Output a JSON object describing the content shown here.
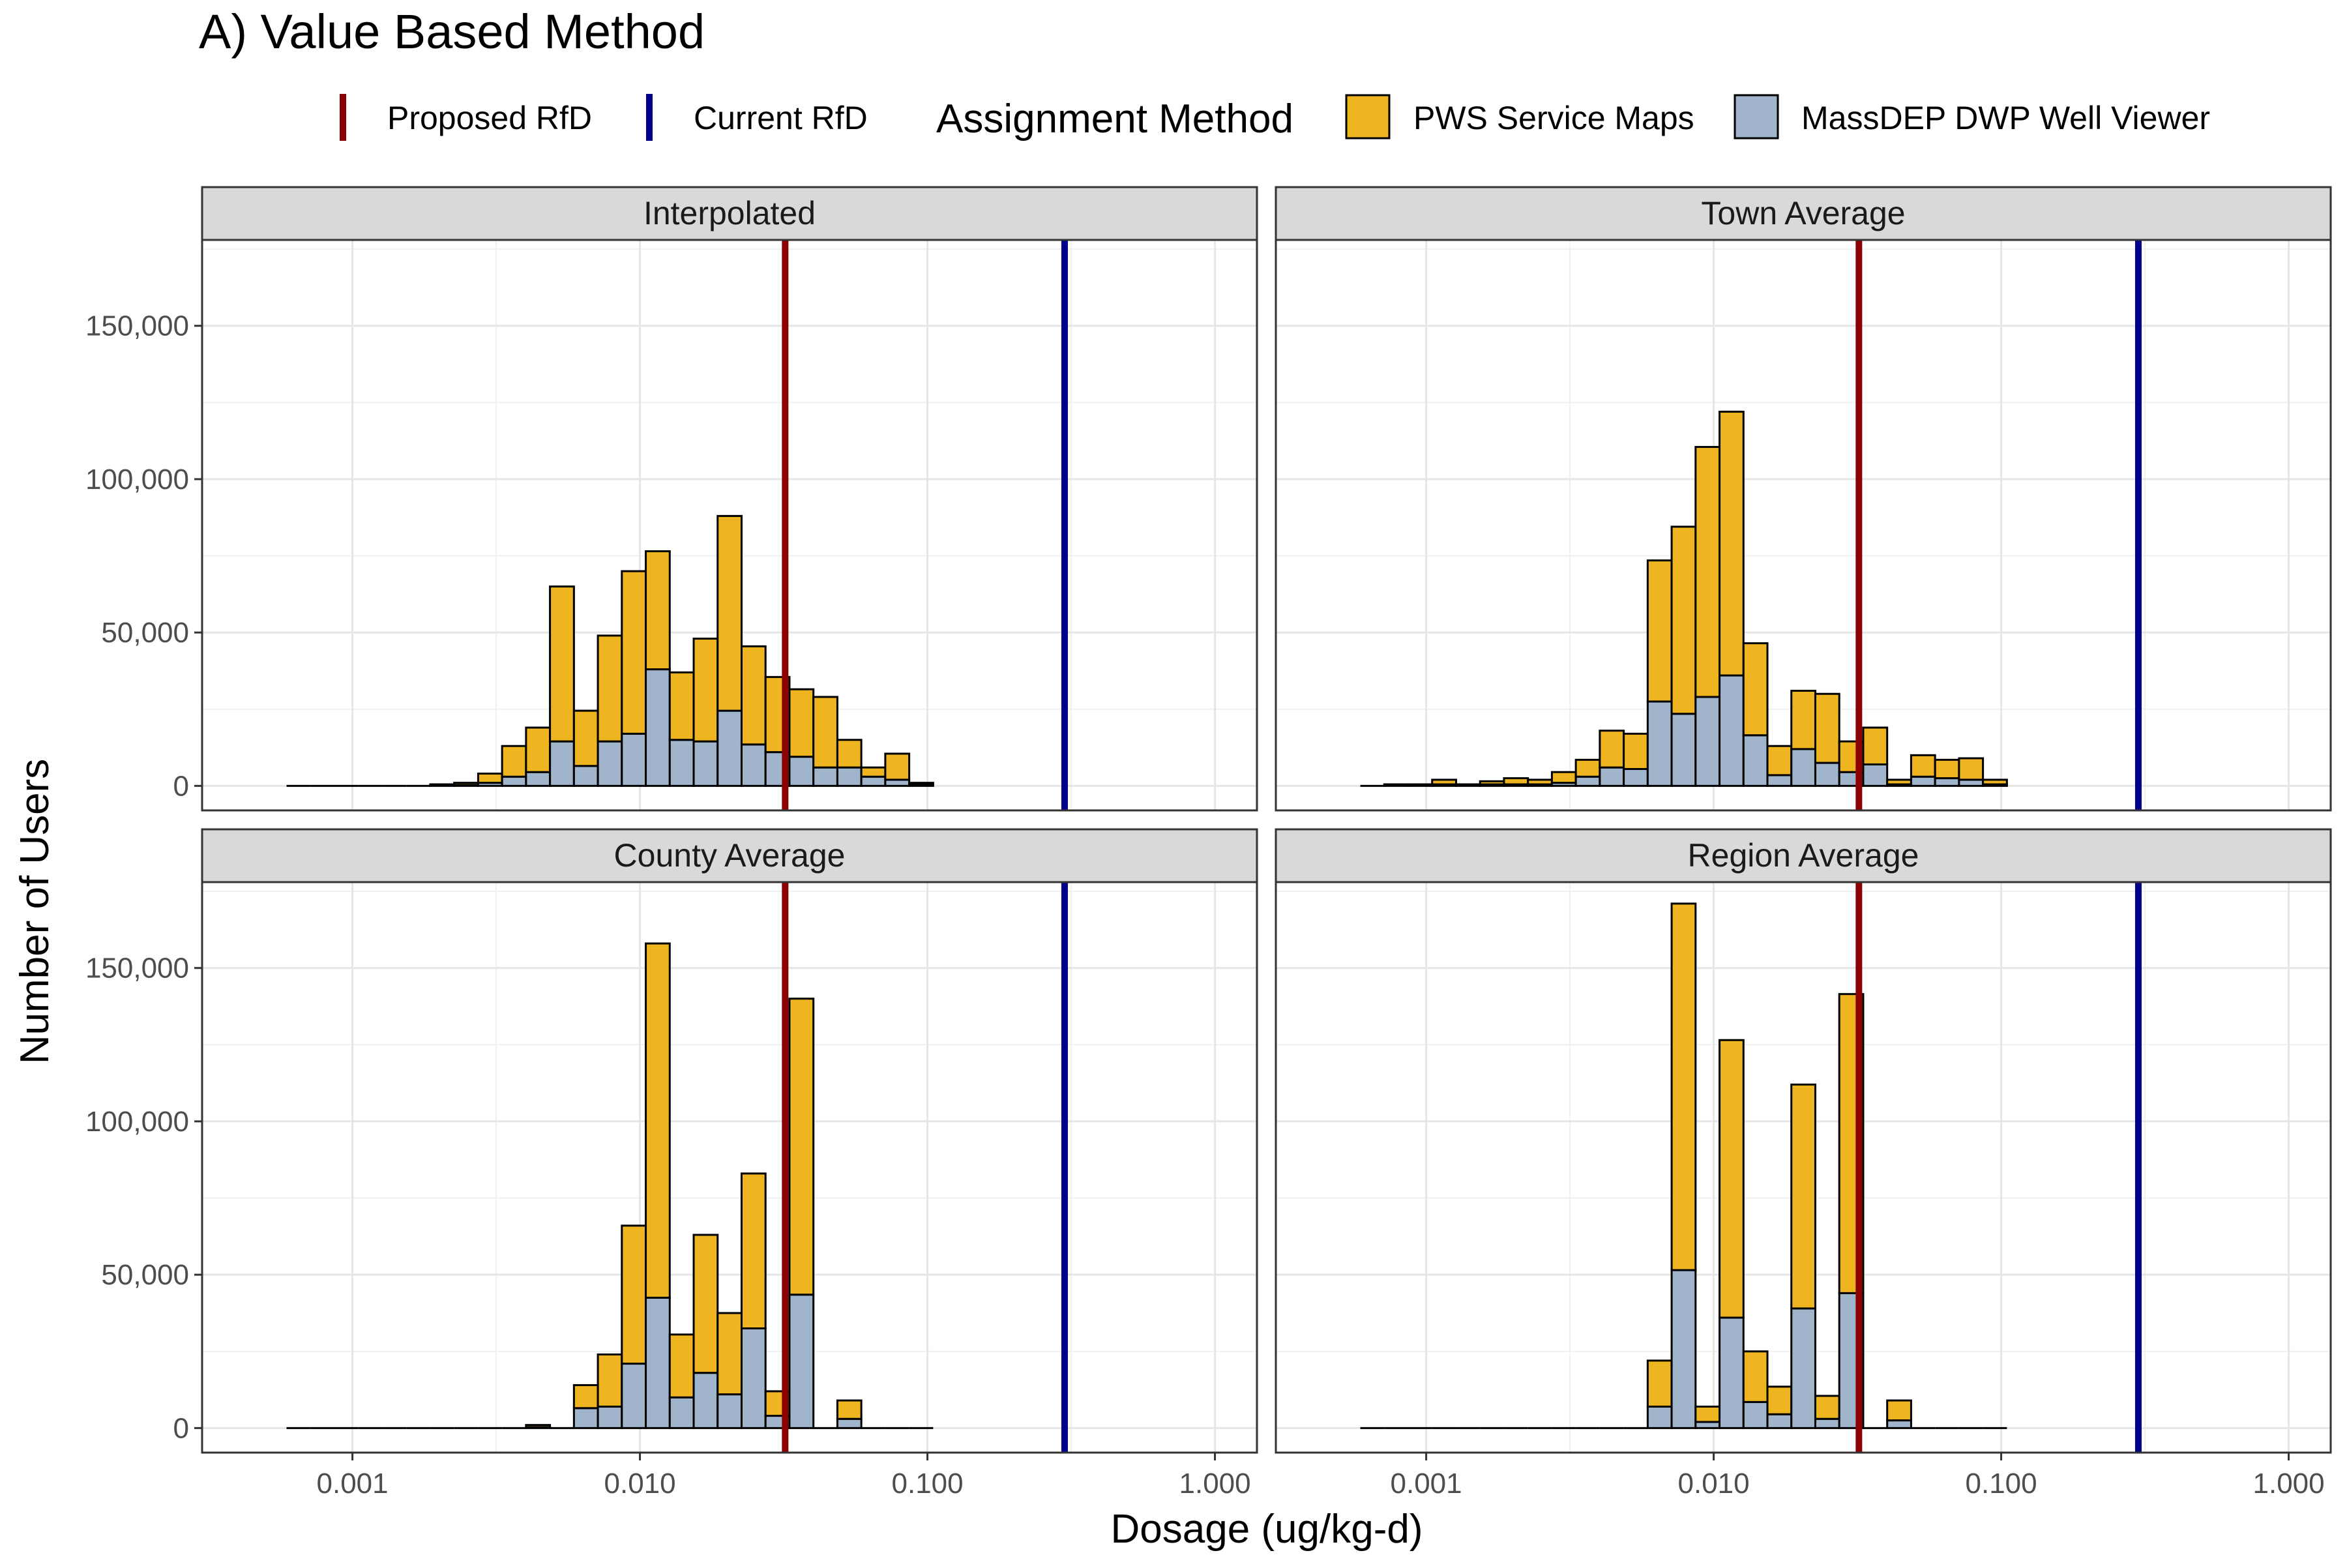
{
  "title": "A) Value Based Method",
  "legend": {
    "lines": [
      {
        "label": "Proposed RfD",
        "color": "#8b0000"
      },
      {
        "label": "Current RfD",
        "color": "#00008b"
      }
    ],
    "fill_title": "Assignment Method",
    "fills": [
      {
        "label": "PWS Service Maps",
        "color": "#efb521"
      },
      {
        "label": "MassDEP DWP Well Viewer",
        "color": "#a0b4cc"
      }
    ]
  },
  "x_axis_title": "Dosage (ug/kg-d)",
  "y_axis_title": "Number of Users",
  "x_tick_labels": [
    "0.001",
    "0.010",
    "0.100",
    "1.000"
  ],
  "y_tick_labels": [
    "0",
    "50,000",
    "100,000",
    "150,000"
  ],
  "chart_data": {
    "type": "bar",
    "subtype": "stacked histogram, faceted 2x2",
    "x_scale": "log10",
    "x_range": [
      0.0003,
      1.4
    ],
    "x_ticks": [
      0.001,
      0.01,
      0.1,
      1
    ],
    "y_range": [
      -8000,
      178000
    ],
    "y_ticks": [
      0,
      50000,
      100000,
      150000
    ],
    "grid": true,
    "legend_position": "top",
    "bin_edges_start": 0.00059,
    "bin_log_width": 0.0833,
    "bin_count": 27,
    "series_names": [
      "PWS Service Maps",
      "MassDEP DWP Well Viewer"
    ],
    "reference_lines": [
      {
        "name": "Proposed RfD",
        "x": 0.032
      },
      {
        "name": "Current RfD",
        "x": 0.3
      }
    ],
    "panels": [
      {
        "title": "Interpolated",
        "total": [
          0,
          0,
          0,
          0,
          0,
          0,
          500,
          1000,
          4000,
          13000,
          19000,
          65000,
          24500,
          49000,
          70000,
          76500,
          37000,
          48000,
          88000,
          45500,
          35500,
          31500,
          29000,
          15000,
          6000,
          10500,
          1000
        ],
        "well_viewer": [
          0,
          0,
          0,
          0,
          0,
          0,
          0,
          300,
          1000,
          3000,
          4500,
          14500,
          6500,
          14500,
          17000,
          38000,
          15000,
          14500,
          24500,
          13500,
          11000,
          9500,
          6000,
          6000,
          3000,
          2000,
          500
        ]
      },
      {
        "title": "Town Average",
        "total": [
          0,
          500,
          500,
          2000,
          500,
          1500,
          2500,
          2000,
          4500,
          8500,
          18000,
          17000,
          73500,
          84500,
          110500,
          122000,
          46500,
          13000,
          31000,
          30000,
          14500,
          19000,
          2000,
          10000,
          8500,
          9000,
          2000
        ],
        "well_viewer": [
          0,
          0,
          0,
          500,
          0,
          500,
          500,
          500,
          1000,
          3000,
          6000,
          5500,
          27500,
          23500,
          29000,
          36000,
          16500,
          3500,
          12000,
          7500,
          4500,
          7000,
          500,
          3000,
          2500,
          2000,
          500
        ]
      },
      {
        "title": "County Average",
        "total": [
          0,
          0,
          0,
          0,
          0,
          0,
          0,
          0,
          0,
          0,
          1000,
          0,
          14000,
          24000,
          66000,
          158000,
          30500,
          63000,
          37500,
          83000,
          12000,
          140000,
          0,
          9000,
          0,
          0,
          0
        ],
        "well_viewer": [
          0,
          0,
          0,
          0,
          0,
          0,
          0,
          0,
          0,
          0,
          300,
          0,
          6500,
          7000,
          21000,
          42500,
          10000,
          18000,
          11000,
          32500,
          4000,
          43500,
          0,
          3000,
          0,
          0,
          0
        ]
      },
      {
        "title": "Region Average",
        "total": [
          0,
          0,
          0,
          0,
          0,
          0,
          0,
          0,
          0,
          0,
          0,
          0,
          22000,
          171000,
          7000,
          126500,
          25000,
          13500,
          112000,
          10500,
          141500,
          0,
          9000,
          0,
          0,
          0,
          0
        ],
        "well_viewer": [
          0,
          0,
          0,
          0,
          0,
          0,
          0,
          0,
          0,
          0,
          0,
          0,
          7000,
          51500,
          2000,
          36000,
          8500,
          4500,
          39000,
          3000,
          44000,
          0,
          2500,
          0,
          0,
          0,
          0
        ]
      }
    ]
  }
}
